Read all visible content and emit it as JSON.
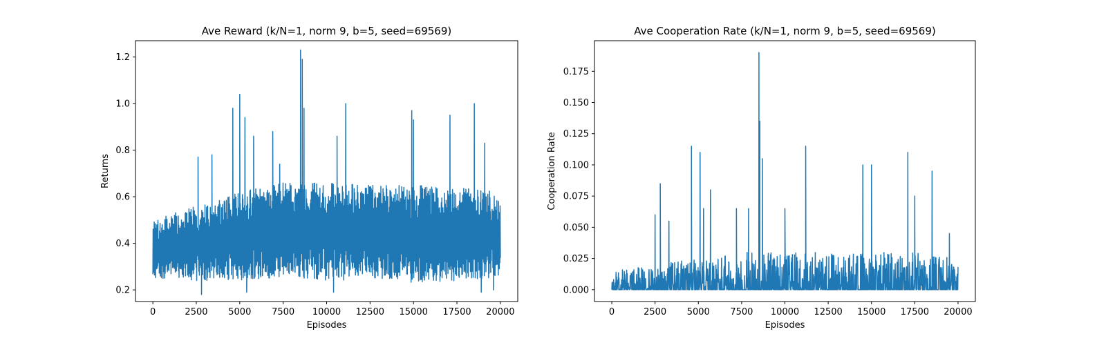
{
  "chart_data": [
    {
      "type": "line",
      "title": "Ave Reward (k/N=1, norm 9, b=5, seed=69569)",
      "xlabel": "Episodes",
      "ylabel": "Returns",
      "xlim": [
        -1000,
        21000
      ],
      "ylim": [
        0.15,
        1.27
      ],
      "xticks": [
        0,
        2500,
        5000,
        7500,
        10000,
        12500,
        15000,
        17500,
        20000
      ],
      "xtick_labels": [
        "0",
        "2500",
        "5000",
        "7500",
        "10000",
        "12500",
        "15000",
        "17500",
        "20000"
      ],
      "yticks": [
        0.2,
        0.4,
        0.6,
        0.8,
        1.0,
        1.2
      ],
      "ytick_labels": [
        "0.2",
        "0.4",
        "0.6",
        "0.8",
        "1.0",
        "1.2"
      ],
      "color": "#1f77b4",
      "grid": false,
      "x_range": [
        0,
        20000
      ],
      "band_profile": {
        "x": [
          0,
          2500,
          5000,
          7500,
          10000,
          12500,
          15000,
          17500,
          20000
        ],
        "low": [
          0.25,
          0.24,
          0.24,
          0.25,
          0.24,
          0.24,
          0.23,
          0.24,
          0.25
        ],
        "high": [
          0.5,
          0.56,
          0.62,
          0.66,
          0.66,
          0.65,
          0.65,
          0.64,
          0.62
        ]
      },
      "peaks": [
        {
          "x": 2600,
          "y": 0.77
        },
        {
          "x": 3400,
          "y": 0.78
        },
        {
          "x": 4600,
          "y": 0.98
        },
        {
          "x": 5000,
          "y": 1.04
        },
        {
          "x": 5300,
          "y": 0.94
        },
        {
          "x": 5800,
          "y": 0.86
        },
        {
          "x": 6900,
          "y": 0.88
        },
        {
          "x": 7300,
          "y": 0.74
        },
        {
          "x": 8500,
          "y": 1.23
        },
        {
          "x": 8600,
          "y": 1.19
        },
        {
          "x": 8700,
          "y": 0.98
        },
        {
          "x": 10600,
          "y": 0.86
        },
        {
          "x": 11100,
          "y": 1.0
        },
        {
          "x": 14900,
          "y": 0.97
        },
        {
          "x": 15000,
          "y": 0.93
        },
        {
          "x": 17100,
          "y": 0.95
        },
        {
          "x": 18500,
          "y": 1.0
        },
        {
          "x": 19100,
          "y": 0.83
        }
      ],
      "dips": [
        {
          "x": 2800,
          "y": 0.18
        },
        {
          "x": 5400,
          "y": 0.19
        },
        {
          "x": 10400,
          "y": 0.19
        },
        {
          "x": 18900,
          "y": 0.19
        },
        {
          "x": 19600,
          "y": 0.2
        }
      ]
    },
    {
      "type": "line",
      "title": "Ave Cooperation Rate (k/N=1, norm 9, b=5, seed=69569)",
      "xlabel": "Episodes",
      "ylabel": "Cooperation Rate",
      "xlim": [
        -1000,
        21000
      ],
      "ylim": [
        -0.0095,
        0.1995
      ],
      "xticks": [
        0,
        2500,
        5000,
        7500,
        10000,
        12500,
        15000,
        17500,
        20000
      ],
      "xtick_labels": [
        "0",
        "2500",
        "5000",
        "7500",
        "10000",
        "12500",
        "15000",
        "17500",
        "20000"
      ],
      "yticks": [
        0.0,
        0.025,
        0.05,
        0.075,
        0.1,
        0.125,
        0.15,
        0.175
      ],
      "ytick_labels": [
        "0.000",
        "0.025",
        "0.050",
        "0.075",
        "0.100",
        "0.125",
        "0.150",
        "0.175"
      ],
      "color": "#1f77b4",
      "grid": false,
      "x_range": [
        0,
        20000
      ],
      "band_profile": {
        "x": [
          0,
          2500,
          5000,
          7500,
          10000,
          12500,
          15000,
          17500,
          20000
        ],
        "low": [
          0,
          0,
          0,
          0,
          0,
          0,
          0,
          0,
          0
        ],
        "high": [
          0.015,
          0.02,
          0.025,
          0.03,
          0.03,
          0.03,
          0.03,
          0.03,
          0.025
        ]
      },
      "peaks": [
        {
          "x": 2500,
          "y": 0.06
        },
        {
          "x": 2800,
          "y": 0.085
        },
        {
          "x": 3300,
          "y": 0.055
        },
        {
          "x": 4600,
          "y": 0.115
        },
        {
          "x": 5100,
          "y": 0.11
        },
        {
          "x": 5300,
          "y": 0.065
        },
        {
          "x": 5700,
          "y": 0.08
        },
        {
          "x": 7200,
          "y": 0.065
        },
        {
          "x": 7900,
          "y": 0.065
        },
        {
          "x": 8500,
          "y": 0.19
        },
        {
          "x": 8550,
          "y": 0.135
        },
        {
          "x": 8700,
          "y": 0.105
        },
        {
          "x": 10000,
          "y": 0.065
        },
        {
          "x": 11200,
          "y": 0.115
        },
        {
          "x": 14500,
          "y": 0.1
        },
        {
          "x": 15000,
          "y": 0.1
        },
        {
          "x": 17100,
          "y": 0.11
        },
        {
          "x": 17500,
          "y": 0.075
        },
        {
          "x": 18500,
          "y": 0.095
        },
        {
          "x": 19500,
          "y": 0.045
        }
      ],
      "dips": []
    }
  ]
}
